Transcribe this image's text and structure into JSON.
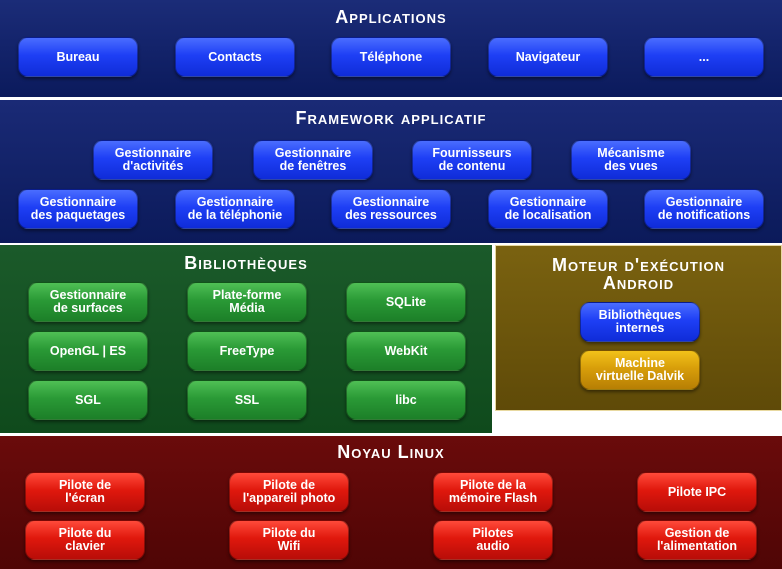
{
  "applications": {
    "title": "Applications",
    "items": [
      "Bureau",
      "Contacts",
      "Téléphone",
      "Navigateur",
      "..."
    ]
  },
  "framework": {
    "title": "Framework applicatif",
    "row1": [
      "Gestionnaire\nd'activités",
      "Gestionnaire\nde fenêtres",
      "Fournisseurs\nde contenu",
      "Mécanisme\ndes vues"
    ],
    "row2": [
      "Gestionnaire\ndes paquetages",
      "Gestionnaire\nde la téléphonie",
      "Gestionnaire\ndes ressources",
      "Gestionnaire\nde localisation",
      "Gestionnaire\nde notifications"
    ]
  },
  "libraries": {
    "title": "Bibliothèques",
    "items": [
      "Gestionnaire\nde surfaces",
      "Plate-forme\nMédia",
      "SQLite",
      "OpenGL | ES",
      "FreeType",
      "WebKit",
      "SGL",
      "SSL",
      "libc"
    ]
  },
  "runtime": {
    "title": "Moteur d'exécution\nAndroid",
    "core_libs": "Bibliothèques\ninternes",
    "vm": "Machine\nvirtuelle Dalvik"
  },
  "kernel": {
    "title": "Noyau Linux",
    "row1": [
      "Pilote de\nl'écran",
      "Pilote de\nl'appareil photo",
      "Pilote de la\nmémoire Flash",
      "Pilote IPC"
    ],
    "row2": [
      "Pilote du\nclavier",
      "Pilote du\nWifi",
      "Pilotes\naudio",
      "Gestion de\nl'alimentation"
    ]
  }
}
